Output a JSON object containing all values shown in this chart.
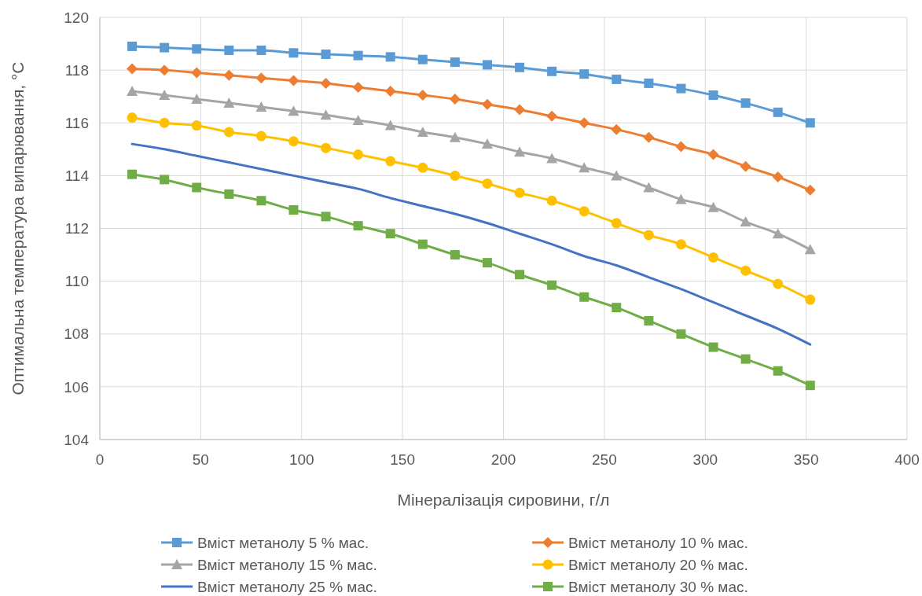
{
  "chart_data": {
    "type": "line",
    "xlabel": "Мінералізація сировини, г/л",
    "ylabel": "Оптимальна температура випарювання, °C",
    "x": [
      16,
      32,
      48,
      64,
      80,
      96,
      112,
      128,
      144,
      160,
      176,
      192,
      208,
      224,
      240,
      256,
      272,
      288,
      304,
      320,
      336,
      352
    ],
    "xlim": [
      0,
      400
    ],
    "xticks": [
      0,
      50,
      100,
      150,
      200,
      250,
      300,
      350,
      400
    ],
    "ylim": [
      104,
      120
    ],
    "yticks": [
      104,
      106,
      108,
      110,
      112,
      114,
      116,
      118,
      120
    ],
    "grid": true,
    "legend": "bottom",
    "line_style": "solid",
    "series": [
      {
        "name": "Вміст метанолу 5 % мас.",
        "color": "#5b9bd5",
        "marker": "square",
        "values": [
          118.9,
          118.85,
          118.8,
          118.75,
          118.75,
          118.65,
          118.6,
          118.55,
          118.5,
          118.4,
          118.3,
          118.2,
          118.1,
          117.95,
          117.85,
          117.65,
          117.5,
          117.3,
          117.05,
          116.75,
          116.4,
          116.0
        ]
      },
      {
        "name": "Вміст метанолу 10 % мас.",
        "color": "#ed7d31",
        "marker": "diamond",
        "values": [
          118.05,
          118.0,
          117.9,
          117.8,
          117.7,
          117.6,
          117.5,
          117.35,
          117.2,
          117.05,
          116.9,
          116.7,
          116.5,
          116.25,
          116.0,
          115.75,
          115.45,
          115.1,
          114.8,
          114.35,
          113.95,
          113.45
        ]
      },
      {
        "name": "Вміст метанолу 15 % мас.",
        "color": "#a5a5a5",
        "marker": "triangle",
        "values": [
          117.2,
          117.05,
          116.9,
          116.75,
          116.6,
          116.45,
          116.3,
          116.1,
          115.9,
          115.65,
          115.45,
          115.2,
          114.9,
          114.65,
          114.3,
          114.0,
          113.55,
          113.1,
          112.8,
          112.25,
          111.8,
          111.2
        ]
      },
      {
        "name": "Вміст метанолу 20 % мас.",
        "color": "#ffc000",
        "marker": "circle",
        "values": [
          116.2,
          116.0,
          115.9,
          115.65,
          115.5,
          115.3,
          115.05,
          114.8,
          114.55,
          114.3,
          114.0,
          113.7,
          113.35,
          113.05,
          112.65,
          112.2,
          111.75,
          111.4,
          110.9,
          110.4,
          109.9,
          109.3
        ]
      },
      {
        "name": "Вміст метанолу 25 % мас.",
        "color": "#4472c4",
        "marker": "none",
        "values": [
          115.2,
          115.0,
          114.75,
          114.5,
          114.25,
          114.0,
          113.75,
          113.5,
          113.15,
          112.85,
          112.55,
          112.2,
          111.8,
          111.4,
          110.95,
          110.6,
          110.15,
          109.7,
          109.2,
          108.7,
          108.2,
          107.6
        ]
      },
      {
        "name": "Вміст метанолу 30 % мас.",
        "color": "#70ad47",
        "marker": "square",
        "values": [
          114.05,
          113.85,
          113.55,
          113.3,
          113.05,
          112.7,
          112.45,
          112.1,
          111.8,
          111.4,
          111.0,
          110.7,
          110.25,
          109.85,
          109.4,
          109.0,
          108.5,
          108.0,
          107.5,
          107.05,
          106.6,
          106.05
        ]
      }
    ]
  }
}
